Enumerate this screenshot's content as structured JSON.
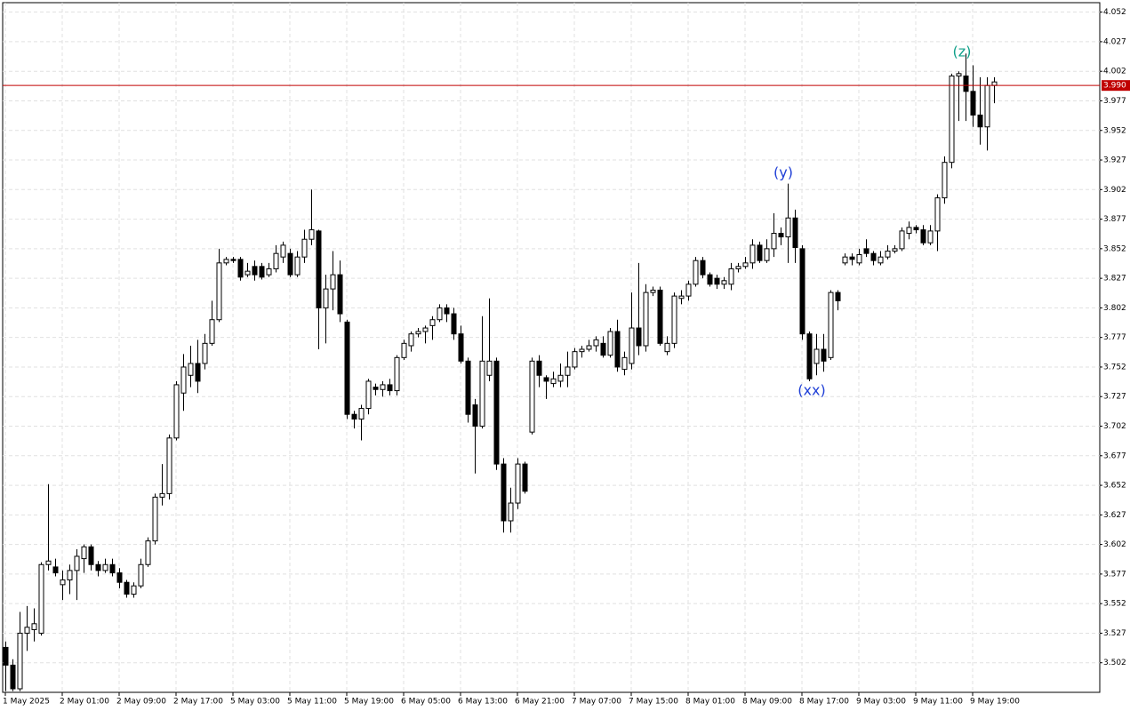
{
  "chart_data": {
    "type": "candlestick",
    "categories": [
      "1 May 2025",
      null,
      null,
      null,
      null,
      null,
      null,
      null,
      "2 May 01:00",
      null,
      null,
      null,
      null,
      null,
      null,
      null,
      "2 May 09:00",
      null,
      null,
      null,
      null,
      null,
      null,
      null,
      "2 May 17:00",
      null,
      null,
      null,
      null,
      null,
      null,
      null,
      "5 May 03:00",
      null,
      null,
      null,
      null,
      null,
      null,
      null,
      "5 May 11:00",
      null,
      null,
      null,
      null,
      null,
      null,
      null,
      "5 May 19:00",
      null,
      null,
      null,
      null,
      null,
      null,
      null,
      "6 May 05:00",
      null,
      null,
      null,
      null,
      null,
      null,
      null,
      "6 May 13:00",
      null,
      null,
      null,
      null,
      null,
      null,
      null,
      "6 May 21:00",
      null,
      null,
      null,
      null,
      null,
      null,
      null,
      "7 May 07:00",
      null,
      null,
      null,
      null,
      null,
      null,
      null,
      "7 May 15:00",
      null,
      null,
      null,
      null,
      null,
      null,
      null,
      "8 May 01:00",
      null,
      null,
      null,
      null,
      null,
      null,
      null,
      "8 May 09:00",
      null,
      null,
      null,
      null,
      null,
      null,
      null,
      "8 May 17:00",
      null,
      null,
      null,
      null,
      null,
      null,
      null,
      "9 May 03:00",
      null,
      null,
      null,
      null,
      null,
      null,
      null,
      "9 May 11:00",
      null,
      null,
      null,
      null,
      null,
      null,
      null,
      "9 May 19:00",
      null,
      null,
      null
    ],
    "open": [
      3.515,
      3.5,
      3.48,
      3.527,
      3.53,
      3.527,
      3.585,
      3.583,
      3.568,
      3.572,
      3.58,
      3.59,
      3.6,
      3.585,
      3.58,
      3.585,
      3.578,
      3.57,
      3.56,
      3.567,
      3.585,
      3.605,
      3.642,
      3.645,
      3.692,
      3.73,
      3.745,
      3.755,
      3.755,
      3.772,
      3.792,
      3.84,
      3.843,
      3.843,
      3.83,
      3.837,
      3.837,
      3.83,
      3.835,
      3.845,
      3.848,
      3.83,
      3.845,
      3.86,
      3.867,
      3.802,
      3.818,
      3.83,
      3.79,
      3.712,
      3.708,
      3.717,
      3.735,
      3.733,
      3.737,
      3.732,
      3.76,
      3.77,
      3.78,
      3.782,
      3.787,
      3.792,
      3.802,
      3.797,
      3.78,
      3.757,
      3.72,
      3.702,
      3.745,
      3.757,
      3.67,
      3.622,
      3.637,
      3.67,
      3.697,
      3.757,
      3.743,
      3.738,
      3.74,
      3.745,
      3.752,
      3.765,
      3.767,
      3.77,
      3.772,
      3.762,
      3.782,
      3.75,
      3.755,
      3.785,
      3.77,
      3.815,
      3.817,
      3.765,
      3.772,
      3.81,
      3.812,
      3.822,
      3.842,
      3.83,
      3.827,
      3.822,
      3.822,
      3.835,
      3.837,
      3.84,
      3.855,
      3.842,
      3.852,
      3.865,
      3.862,
      3.878,
      3.852,
      3.78,
      3.755,
      3.767,
      3.76,
      3.815,
      3.84,
      3.845,
      3.84,
      3.852,
      3.848,
      3.84,
      3.845,
      3.85,
      3.852,
      3.865,
      3.87,
      3.868,
      3.857,
      3.867,
      3.895,
      3.925,
      3.998,
      3.998,
      3.985,
      3.965,
      3.955,
      3.99
    ],
    "high": [
      3.52,
      3.505,
      3.545,
      3.55,
      3.548,
      3.587,
      3.653,
      3.59,
      3.58,
      3.585,
      3.598,
      3.602,
      3.602,
      3.588,
      3.59,
      3.59,
      3.582,
      3.572,
      3.57,
      3.59,
      3.608,
      3.645,
      3.67,
      3.695,
      3.74,
      3.763,
      3.77,
      3.775,
      3.78,
      3.808,
      3.852,
      3.845,
      3.845,
      3.845,
      3.84,
      3.842,
      3.84,
      3.84,
      3.855,
      3.858,
      3.852,
      3.85,
      3.868,
      3.902,
      3.868,
      3.83,
      3.85,
      3.842,
      3.792,
      3.715,
      3.72,
      3.742,
      3.738,
      3.74,
      3.742,
      3.762,
      3.775,
      3.782,
      3.785,
      3.787,
      3.795,
      3.805,
      3.805,
      3.802,
      3.787,
      3.76,
      3.725,
      3.795,
      3.81,
      3.76,
      3.675,
      3.65,
      3.675,
      3.672,
      3.76,
      3.762,
      3.745,
      3.748,
      3.755,
      3.765,
      3.768,
      3.77,
      3.775,
      3.778,
      3.778,
      3.785,
      3.792,
      3.765,
      3.815,
      3.84,
      3.822,
      3.82,
      3.82,
      3.778,
      3.815,
      3.817,
      3.825,
      3.845,
      3.845,
      3.832,
      3.83,
      3.828,
      3.84,
      3.84,
      3.845,
      3.86,
      3.858,
      3.86,
      3.882,
      3.87,
      3.907,
      3.885,
      3.855,
      3.782,
      3.78,
      3.78,
      3.817,
      3.817,
      3.848,
      3.848,
      3.852,
      3.86,
      3.85,
      3.85,
      3.855,
      3.855,
      3.87,
      3.875,
      3.872,
      3.872,
      3.872,
      3.898,
      3.93,
      4.0,
      4.002,
      4.017,
      4.007,
      3.997,
      3.997,
      3.997
    ],
    "low": [
      3.478,
      3.478,
      3.478,
      3.512,
      3.52,
      3.525,
      3.58,
      3.575,
      3.555,
      3.56,
      3.555,
      3.578,
      3.58,
      3.575,
      3.578,
      3.575,
      3.565,
      3.557,
      3.557,
      3.565,
      3.583,
      3.602,
      3.635,
      3.64,
      3.69,
      3.715,
      3.735,
      3.73,
      3.75,
      3.77,
      3.79,
      3.838,
      3.84,
      3.825,
      3.828,
      3.825,
      3.826,
      3.828,
      3.832,
      3.84,
      3.828,
      3.828,
      3.84,
      3.855,
      3.767,
      3.772,
      3.8,
      3.79,
      3.708,
      3.7,
      3.69,
      3.712,
      3.728,
      3.727,
      3.728,
      3.728,
      3.758,
      3.765,
      3.777,
      3.772,
      3.775,
      3.79,
      3.79,
      3.775,
      3.755,
      3.705,
      3.662,
      3.7,
      3.74,
      3.665,
      3.612,
      3.612,
      3.632,
      3.645,
      3.695,
      3.735,
      3.725,
      3.735,
      3.735,
      3.735,
      3.75,
      3.76,
      3.765,
      3.765,
      3.76,
      3.76,
      3.748,
      3.745,
      3.75,
      3.762,
      3.765,
      3.812,
      3.77,
      3.762,
      3.768,
      3.805,
      3.808,
      3.82,
      3.827,
      3.82,
      3.818,
      3.818,
      3.817,
      3.832,
      3.835,
      3.835,
      3.84,
      3.84,
      3.845,
      3.855,
      3.84,
      3.84,
      3.775,
      3.74,
      3.745,
      3.748,
      3.758,
      3.8,
      3.838,
      3.838,
      3.838,
      3.845,
      3.838,
      3.838,
      3.843,
      3.848,
      3.85,
      3.86,
      3.865,
      3.855,
      3.855,
      3.85,
      3.89,
      3.92,
      3.96,
      3.96,
      3.955,
      3.94,
      3.935,
      3.975
    ],
    "close": [
      3.5,
      3.48,
      3.527,
      3.532,
      3.535,
      3.585,
      3.588,
      3.578,
      3.572,
      3.58,
      3.592,
      3.6,
      3.585,
      3.58,
      3.585,
      3.578,
      3.57,
      3.56,
      3.567,
      3.585,
      3.605,
      3.642,
      3.645,
      3.692,
      3.737,
      3.752,
      3.755,
      3.74,
      3.772,
      3.792,
      3.84,
      3.843,
      3.842,
      3.828,
      3.833,
      3.83,
      3.828,
      3.835,
      3.848,
      3.855,
      3.83,
      3.845,
      3.86,
      3.868,
      3.802,
      3.818,
      3.83,
      3.797,
      3.712,
      3.708,
      3.717,
      3.74,
      3.733,
      3.737,
      3.732,
      3.76,
      3.772,
      3.78,
      3.782,
      3.785,
      3.792,
      3.802,
      3.797,
      3.78,
      3.757,
      3.712,
      3.702,
      3.757,
      3.757,
      3.67,
      3.622,
      3.637,
      3.67,
      3.647,
      3.757,
      3.745,
      3.74,
      3.742,
      3.745,
      3.752,
      3.765,
      3.767,
      3.77,
      3.775,
      3.762,
      3.782,
      3.752,
      3.76,
      3.785,
      3.77,
      3.815,
      3.817,
      3.772,
      3.772,
      3.812,
      3.812,
      3.822,
      3.842,
      3.83,
      3.822,
      3.822,
      3.825,
      3.835,
      3.837,
      3.84,
      3.855,
      3.842,
      3.852,
      3.865,
      3.862,
      3.878,
      3.853,
      3.78,
      3.742,
      3.767,
      3.757,
      3.815,
      3.808,
      3.845,
      3.843,
      3.847,
      3.848,
      3.842,
      3.845,
      3.85,
      3.852,
      3.867,
      3.87,
      3.868,
      3.857,
      3.867,
      3.895,
      3.925,
      3.998,
      4.0,
      3.985,
      3.965,
      3.955,
      3.99,
      3.993
    ],
    "ylim": [
      3.477,
      4.06
    ],
    "yticks": [
      3.502,
      3.527,
      3.552,
      3.577,
      3.602,
      3.627,
      3.652,
      3.677,
      3.702,
      3.727,
      3.752,
      3.777,
      3.802,
      3.827,
      3.852,
      3.877,
      3.902,
      3.927,
      3.952,
      3.977,
      4.002,
      4.027,
      4.052
    ],
    "grid": true,
    "up_color": "#ffffff",
    "down_color": "#000000",
    "price_line": {
      "value": 3.99,
      "label": "3.990",
      "color": "#c00000"
    },
    "annotations": [
      "(y)",
      "(xx)",
      "(z)"
    ]
  }
}
